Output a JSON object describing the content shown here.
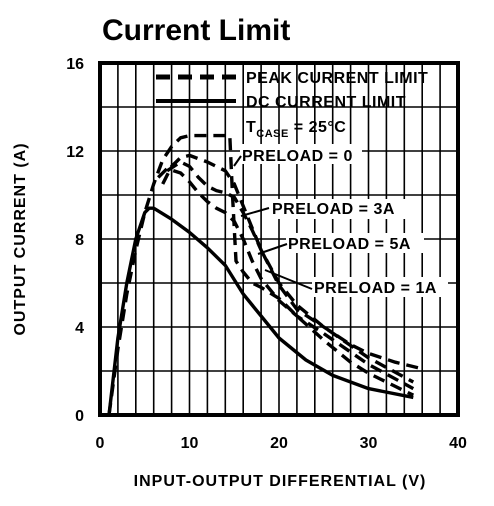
{
  "chart_data": {
    "type": "line",
    "title": "Current Limit",
    "xlabel": "INPUT-OUTPUT DIFFERENTIAL (V)",
    "ylabel": "OUTPUT CURRENT (A)",
    "xlim": [
      0,
      40
    ],
    "ylim": [
      0,
      16
    ],
    "xticks": [
      0,
      10,
      20,
      30,
      40
    ],
    "yticks": [
      0,
      4,
      8,
      12,
      16
    ],
    "grid": true,
    "legend": {
      "placement": "top-right",
      "entries": [
        {
          "label": "PEAK CURRENT LIMIT",
          "style": "dashed"
        },
        {
          "label": "DC CURRENT LIMIT",
          "style": "solid"
        }
      ],
      "condition": {
        "main": "T",
        "subscript": "CASE",
        "rest": " = 25°C"
      }
    },
    "series": [
      {
        "label": "PRELOAD = 0",
        "style": "dashed",
        "x": [
          1,
          2,
          3,
          4,
          5,
          6,
          7,
          8,
          9,
          10,
          12,
          14.5,
          14.8,
          15.2,
          16,
          17,
          18,
          20,
          22,
          25,
          28,
          30,
          33,
          35
        ],
        "y": [
          0,
          3,
          5.5,
          7.5,
          9.2,
          10.5,
          11.6,
          12.2,
          12.6,
          12.7,
          12.7,
          12.7,
          10,
          7,
          6.5,
          6,
          5.8,
          5.3,
          4.5,
          3.4,
          2.4,
          1.9,
          1.3,
          0.9
        ]
      },
      {
        "label": "PRELOAD = 1A",
        "style": "dashed",
        "x": [
          7,
          8,
          9,
          10,
          12,
          14,
          15,
          16,
          18,
          20,
          22,
          25,
          28,
          30,
          33,
          36
        ],
        "y": [
          10.5,
          11.3,
          11.7,
          11.8,
          11.5,
          11.1,
          10.5,
          9.5,
          7.5,
          5.9,
          4.8,
          4,
          3.2,
          2.8,
          2.4,
          2.1
        ]
      },
      {
        "label": "PRELOAD = 3A",
        "style": "dashed",
        "x": [
          6.5,
          7.5,
          9,
          10,
          11,
          12,
          13,
          14,
          15,
          16,
          17,
          18,
          20,
          22,
          25,
          30,
          35
        ],
        "y": [
          10.8,
          11.2,
          11,
          10.6,
          10.1,
          9.7,
          9.4,
          9.2,
          8.8,
          8,
          7,
          6.2,
          5.2,
          4.5,
          3.7,
          2.3,
          1.2
        ]
      },
      {
        "label": "PRELOAD = 5A",
        "style": "dashed",
        "x": [
          7.5,
          9,
          10,
          11,
          12,
          13,
          14,
          15,
          16,
          17,
          18,
          20,
          22,
          25,
          30,
          35
        ],
        "y": [
          11.1,
          11.5,
          11.3,
          10.8,
          10.4,
          10.2,
          10.1,
          9.9,
          9.2,
          8.4,
          7.5,
          6,
          5,
          4,
          2.6,
          1.5
        ]
      },
      {
        "label": "DC CURRENT LIMIT",
        "style": "solid",
        "x": [
          1,
          2,
          3,
          4,
          5,
          5.5,
          6,
          8,
          10,
          12,
          14,
          16,
          18,
          20,
          23,
          26,
          30,
          35
        ],
        "y": [
          0,
          3.5,
          6,
          8,
          9.2,
          9.4,
          9.4,
          8.9,
          8.3,
          7.6,
          6.8,
          5.5,
          4.5,
          3.5,
          2.5,
          1.8,
          1.2,
          0.8
        ]
      }
    ],
    "annotations": [
      "PRELOAD = 0",
      "PRELOAD = 3A",
      "PRELOAD = 5A",
      "PRELOAD = 1A"
    ]
  }
}
